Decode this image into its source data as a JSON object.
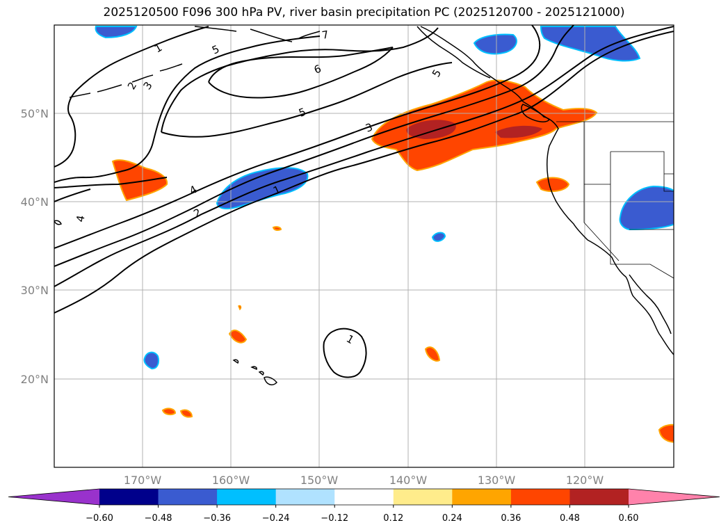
{
  "title": "2025120500 F096 300 hPa PV, river basin precipitation PC (2025120700 - 2025121000)",
  "map": {
    "lat_labels": [
      "50°N",
      "40°N",
      "30°N",
      "20°N"
    ],
    "lon_labels": [
      "170°W",
      "160°W",
      "150°W",
      "140°W",
      "130°W",
      "120°W"
    ],
    "pv_contour_labels": [
      "1",
      "2",
      "3",
      "4",
      "5",
      "6",
      "7",
      "1",
      "2",
      "3",
      "4",
      "5",
      "1",
      "5"
    ]
  },
  "colorbar": {
    "ticks": [
      "−0.60",
      "−0.48",
      "−0.36",
      "−0.24",
      "−0.12",
      "0.12",
      "0.24",
      "0.36",
      "0.48",
      "0.60"
    ],
    "colors": [
      "#9932cc",
      "#00008b",
      "#3a5bd0",
      "#00bfff",
      "#b0e2ff",
      "#ffffff",
      "#ffec8b",
      "#ffa500",
      "#ff4500",
      "#b22222",
      "#ff82ab"
    ]
  }
}
